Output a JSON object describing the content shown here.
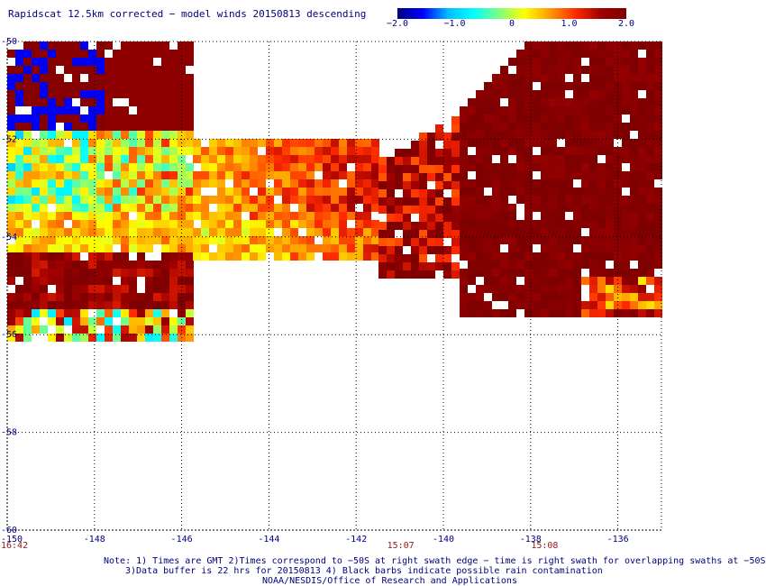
{
  "title": "Rapidscat 12.5km corrected − model winds 20150813 descending",
  "colorbar": {
    "ticks": [
      "−2.0",
      "−1.0",
      "0",
      "1.0",
      "2.0"
    ],
    "tick_values": [
      -2.0,
      -1.0,
      0,
      1.0,
      2.0
    ],
    "min": -2.0,
    "max": 2.0,
    "colors": [
      "#00007f",
      "#0000ff",
      "#00bfff",
      "#00ffff",
      "#7fff7f",
      "#ffff00",
      "#ff9900",
      "#ff2a00",
      "#a00000",
      "#7f0000"
    ]
  },
  "map": {
    "lon_ticks": [
      "-150",
      "-148",
      "-146",
      "-144",
      "-142",
      "-140",
      "-138",
      "-136"
    ],
    "lon_values": [
      -150,
      -148,
      -146,
      -144,
      -142,
      -140,
      -138,
      -136
    ],
    "lat_ticks": [
      "-50",
      "-52",
      "-54",
      "-56",
      "-58",
      "-60"
    ],
    "lat_values": [
      -50,
      -52,
      -54,
      -56,
      -58,
      -60
    ],
    "lon_range": [
      -150,
      -135
    ],
    "lat_range": [
      -60,
      -50
    ]
  },
  "times": [
    "16:42",
    "15:07",
    "15:08"
  ],
  "time_lons": [
    -150,
    -141,
    -137.7
  ],
  "notes": {
    "line1": "Note: 1) Times are GMT 2)Times correspond to −50S at right swath edge − time is right swath for overlapping swaths at −50S",
    "line2": "3)Data buffer is 22 hrs for 20150813 4) Black barbs indicate possible rain contamination",
    "line3": "NOAA/NESDIS/Office of Research and Applications"
  }
}
